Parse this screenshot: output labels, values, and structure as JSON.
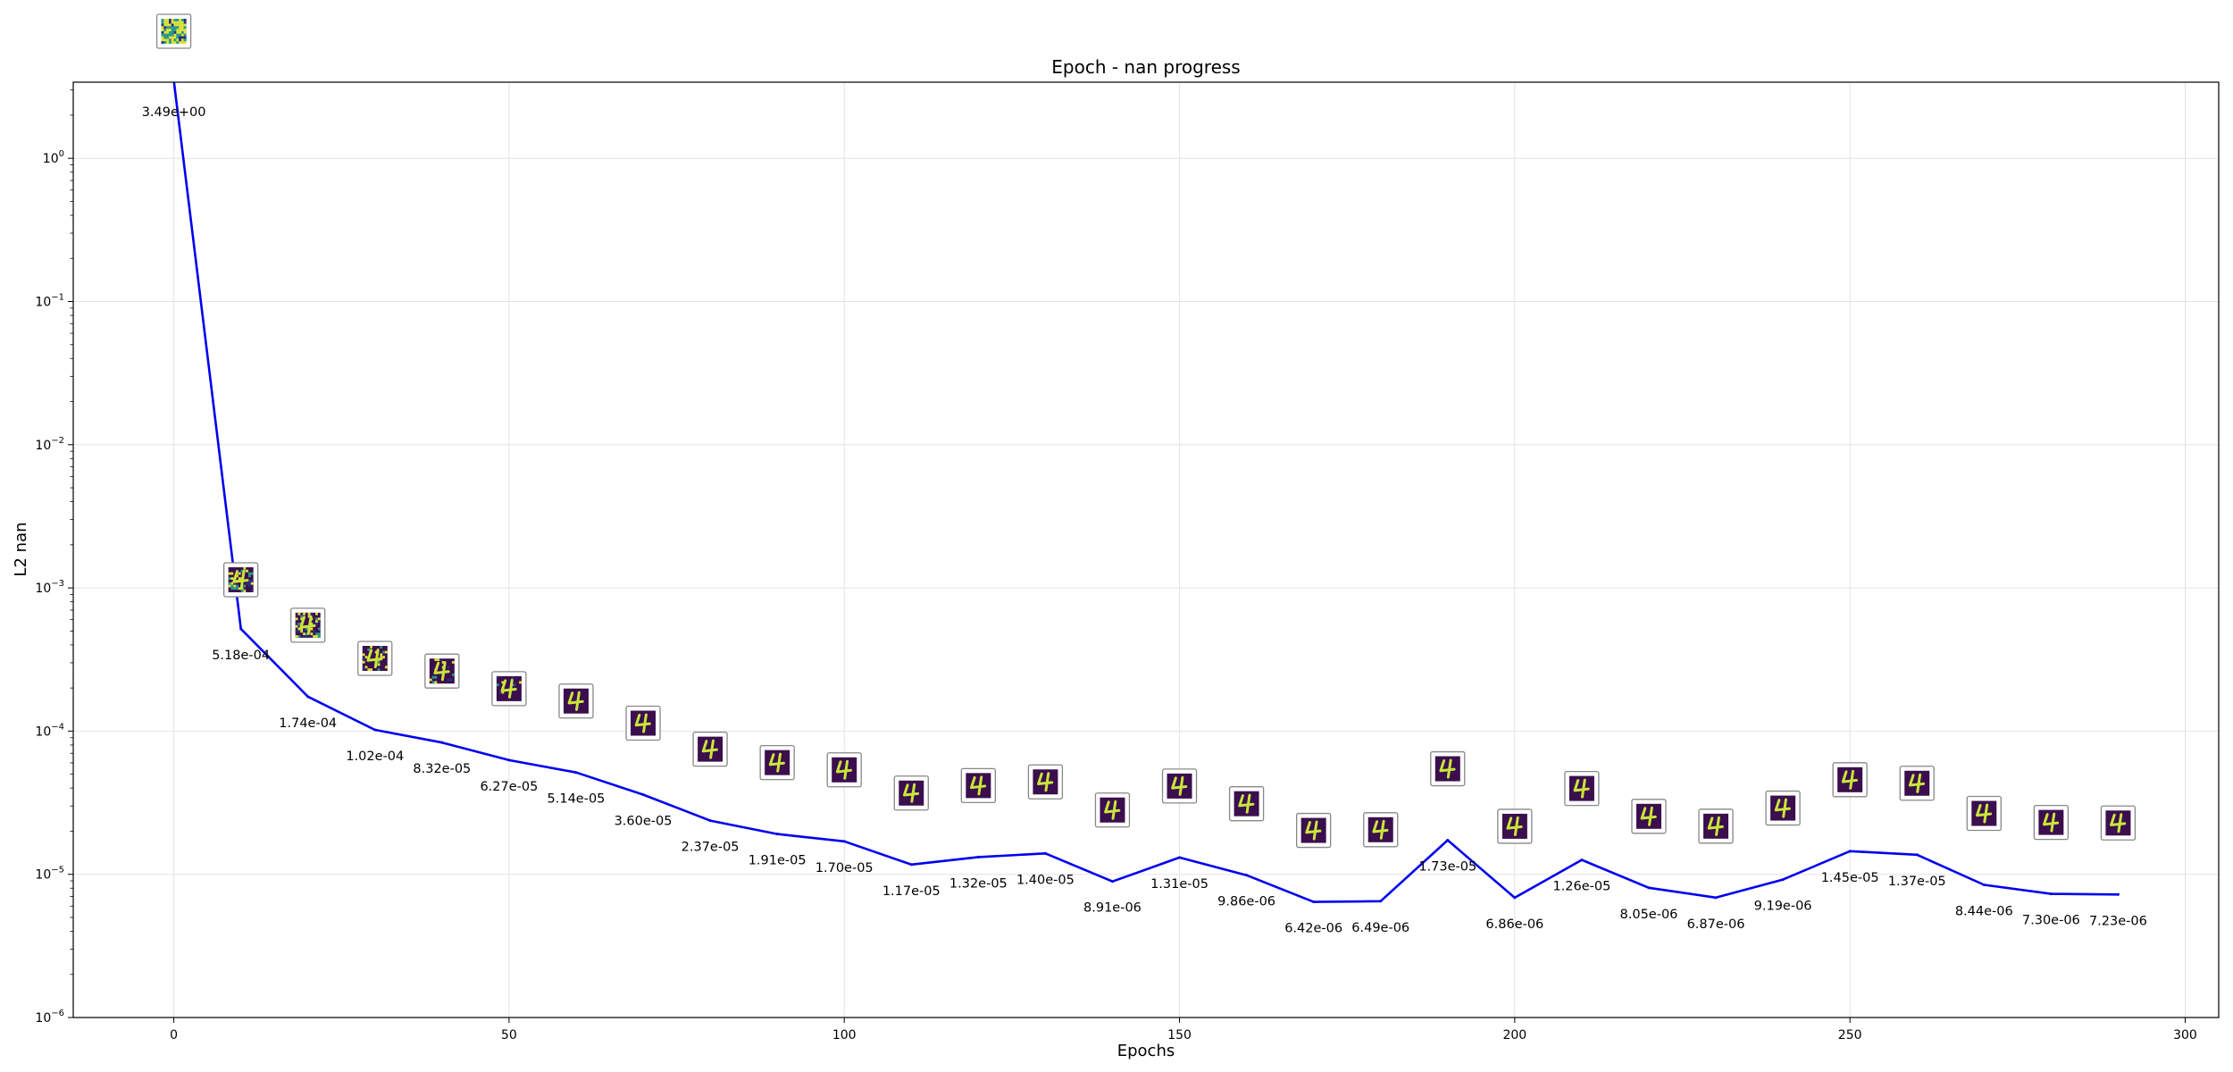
{
  "chart_data": {
    "type": "line",
    "title": "Epoch - nan progress",
    "xlabel": "Epochs",
    "ylabel": "L2 nan",
    "xlim": [
      -15,
      305
    ],
    "ylim": [
      1e-06,
      3.4
    ],
    "yscale": "log",
    "grid": true,
    "x_ticks": [
      {
        "value": 0,
        "label": "0"
      },
      {
        "value": 50,
        "label": "50"
      },
      {
        "value": 100,
        "label": "100"
      },
      {
        "value": 150,
        "label": "150"
      },
      {
        "value": 200,
        "label": "200"
      },
      {
        "value": 250,
        "label": "250"
      },
      {
        "value": 300,
        "label": "300"
      }
    ],
    "y_ticks": [
      {
        "value": 1,
        "base": "10",
        "exp": "0"
      },
      {
        "value": 0.1,
        "base": "10",
        "exp": "−1"
      },
      {
        "value": 0.01,
        "base": "10",
        "exp": "−2"
      },
      {
        "value": 0.001,
        "base": "10",
        "exp": "−3"
      },
      {
        "value": 0.0001,
        "base": "10",
        "exp": "−4"
      },
      {
        "value": 1e-05,
        "base": "10",
        "exp": "−5"
      },
      {
        "value": 1e-06,
        "base": "10",
        "exp": "−6"
      }
    ],
    "series": [
      {
        "color": "#0000ee",
        "x": [
          0,
          10,
          20,
          30,
          40,
          50,
          60,
          70,
          80,
          90,
          100,
          110,
          120,
          130,
          140,
          150,
          160,
          170,
          180,
          190,
          200,
          210,
          220,
          230,
          240,
          250,
          260,
          270,
          280,
          290
        ],
        "y": [
          3.49,
          0.000518,
          0.000174,
          0.000102,
          8.32e-05,
          6.27e-05,
          5.14e-05,
          3.6e-05,
          2.37e-05,
          1.91e-05,
          1.7e-05,
          1.17e-05,
          1.32e-05,
          1.4e-05,
          8.91e-06,
          1.31e-05,
          9.86e-06,
          6.42e-06,
          6.49e-06,
          1.73e-05,
          6.86e-06,
          1.26e-05,
          8.05e-06,
          6.87e-06,
          9.19e-06,
          1.45e-05,
          1.37e-05,
          8.44e-06,
          7.3e-06,
          7.23e-06
        ],
        "labels": [
          "3.49e+00",
          "5.18e-04",
          "1.74e-04",
          "1.02e-04",
          "8.32e-05",
          "6.27e-05",
          "5.14e-05",
          "3.60e-05",
          "2.37e-05",
          "1.91e-05",
          "1.70e-05",
          "1.17e-05",
          "1.32e-05",
          "1.40e-05",
          "8.91e-06",
          "1.31e-05",
          "9.86e-06",
          "6.42e-06",
          "6.49e-06",
          "1.73e-05",
          "6.86e-06",
          "1.26e-05",
          "8.05e-06",
          "6.87e-06",
          "9.19e-06",
          "1.45e-05",
          "1.37e-05",
          "8.44e-06",
          "7.30e-06",
          "7.23e-06"
        ],
        "thumbnail_icon": "digit-four-sample-icon"
      }
    ]
  },
  "colors": {
    "line": "#0000ee",
    "grid": "#e3e3e3",
    "thumb_bg_clean": "#3b0f4e",
    "thumb_digit": "#c9e63a",
    "thumb_noise_a": "#2a9a8a",
    "thumb_noise_b": "#e4e23a"
  }
}
